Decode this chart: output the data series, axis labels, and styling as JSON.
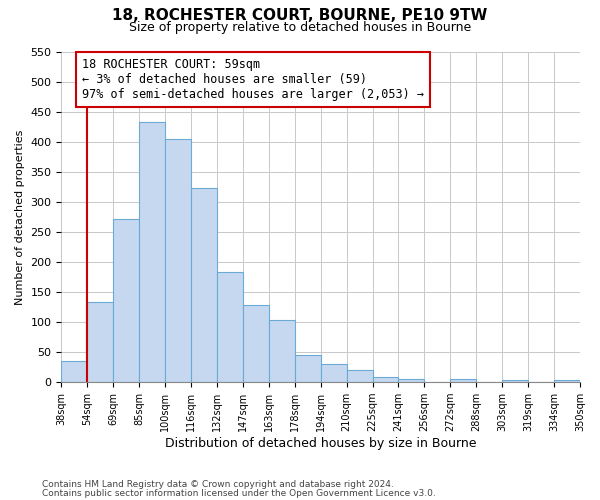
{
  "title": "18, ROCHESTER COURT, BOURNE, PE10 9TW",
  "subtitle": "Size of property relative to detached houses in Bourne",
  "xlabel": "Distribution of detached houses by size in Bourne",
  "ylabel": "Number of detached properties",
  "annotation_line1": "18 ROCHESTER COURT: 59sqm",
  "annotation_line2": "← 3% of detached houses are smaller (59)",
  "annotation_line3": "97% of semi-detached houses are larger (2,053) →",
  "bar_color": "#c5d8f0",
  "bar_edge_color": "#6aaad4",
  "vline_color": "#cc0000",
  "vline_x": 1,
  "bins": [
    "38sqm",
    "54sqm",
    "69sqm",
    "85sqm",
    "100sqm",
    "116sqm",
    "132sqm",
    "147sqm",
    "163sqm",
    "178sqm",
    "194sqm",
    "210sqm",
    "225sqm",
    "241sqm",
    "256sqm",
    "272sqm",
    "288sqm",
    "303sqm",
    "319sqm",
    "334sqm",
    "350sqm"
  ],
  "values": [
    35,
    133,
    272,
    433,
    405,
    323,
    184,
    128,
    104,
    46,
    30,
    20,
    8,
    6,
    0,
    5,
    0,
    3,
    0,
    4
  ],
  "ylim": [
    0,
    550
  ],
  "yticks": [
    0,
    50,
    100,
    150,
    200,
    250,
    300,
    350,
    400,
    450,
    500,
    550
  ],
  "footnote1": "Contains HM Land Registry data © Crown copyright and database right 2024.",
  "footnote2": "Contains public sector information licensed under the Open Government Licence v3.0.",
  "background_color": "#ffffff",
  "grid_color": "#c8c8c8"
}
